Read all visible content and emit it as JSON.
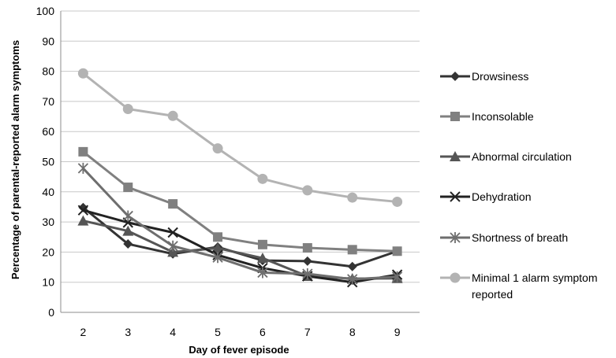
{
  "chart_data": {
    "type": "line",
    "title": "",
    "xlabel": "Day of fever episode",
    "ylabel": "Percentage of parental-reported alarm symptoms",
    "x": [
      2,
      3,
      4,
      5,
      6,
      7,
      8,
      9
    ],
    "ylim": [
      0,
      100
    ],
    "yticks": [
      0,
      10,
      20,
      30,
      40,
      50,
      60,
      70,
      80,
      90,
      100
    ],
    "grid": "horizontal",
    "legend_position": "right",
    "series": [
      {
        "name": "Drowsiness",
        "marker": "diamond",
        "color": "#333333",
        "values": [
          34.8,
          22.7,
          19.4,
          21.7,
          17.2,
          17.0,
          15.2,
          20.3
        ]
      },
      {
        "name": "Inconsolable",
        "marker": "square",
        "color": "#808080",
        "values": [
          53.3,
          41.5,
          36.0,
          25.0,
          22.5,
          21.4,
          20.8,
          20.3
        ]
      },
      {
        "name": "Abnormal circulation",
        "marker": "triangle",
        "color": "#555555",
        "values": [
          30.4,
          27.0,
          20.0,
          21.3,
          18.0,
          12.0,
          11.2,
          11.3
        ]
      },
      {
        "name": "Dehydration",
        "marker": "x",
        "color": "#222222",
        "values": [
          33.9,
          29.8,
          26.5,
          19.0,
          14.7,
          12.0,
          10.0,
          12.5
        ]
      },
      {
        "name": "Shortness of breath",
        "marker": "star",
        "color": "#6e6e6e",
        "values": [
          47.8,
          32.0,
          22.0,
          18.2,
          13.2,
          12.8,
          11.0,
          11.8
        ]
      },
      {
        "name": "Minimal 1 alarm symptom reported",
        "marker": "circle",
        "color": "#b3b3b3",
        "values": [
          79.3,
          67.5,
          65.2,
          54.4,
          44.3,
          40.5,
          38.1,
          36.7
        ]
      }
    ]
  }
}
